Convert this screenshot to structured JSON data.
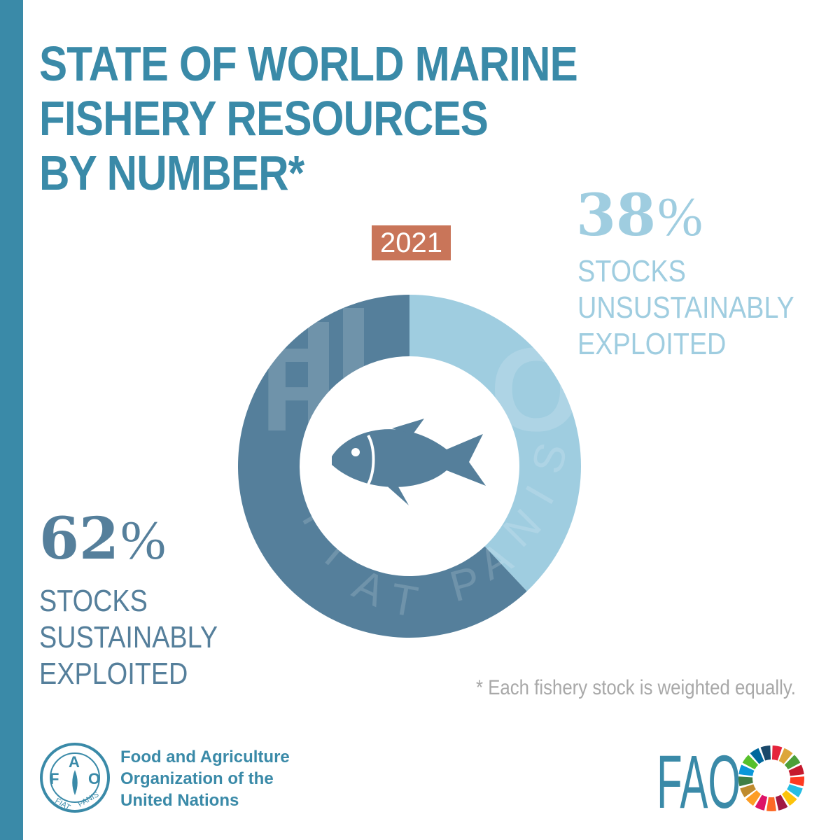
{
  "title_lines": [
    "STATE OF WORLD MARINE",
    "FISHERY RESOURCES",
    "BY NUMBER*"
  ],
  "colors": {
    "accent": "#3a8aa8",
    "sustainable": "#557f9b",
    "unsustainable": "#9fcde0",
    "year_badge": "#c97559",
    "footnote": "#a8a8a8"
  },
  "chart_data": {
    "type": "pie",
    "style": "donut",
    "year": "2021",
    "slices": [
      {
        "label_lines": [
          "STOCKS",
          "UNSUSTAINABLY",
          "EXPLOITED"
        ],
        "value": 38,
        "value_label": "38",
        "unit": "%",
        "color": "#9fcde0"
      },
      {
        "label_lines": [
          "STOCKS",
          "SUSTAINABLY",
          "EXPLOITED"
        ],
        "value": 62,
        "value_label": "62",
        "unit": "%",
        "color": "#557f9b"
      }
    ],
    "center_icon": "fish-icon",
    "watermark": "FAO FIAT PANIS",
    "footnote": "* Each fishery stock is weighted equally."
  },
  "footer": {
    "org_name_lines": [
      "Food and Agriculture",
      "Organization of the",
      "United Nations"
    ],
    "org_logo_text": "FAO FIAT PANIS",
    "brand_text": "FAO",
    "brand_icon": "sdg-wheel-icon",
    "sdg_colors": [
      "#e5243b",
      "#dda63a",
      "#4c9f38",
      "#c5192d",
      "#ff3a21",
      "#26bde2",
      "#fcc30b",
      "#a21942",
      "#fd6925",
      "#dd1367",
      "#fd9d24",
      "#bf8b2e",
      "#3f7e44",
      "#0a97d9",
      "#56c02b",
      "#00689d",
      "#19486a"
    ]
  }
}
